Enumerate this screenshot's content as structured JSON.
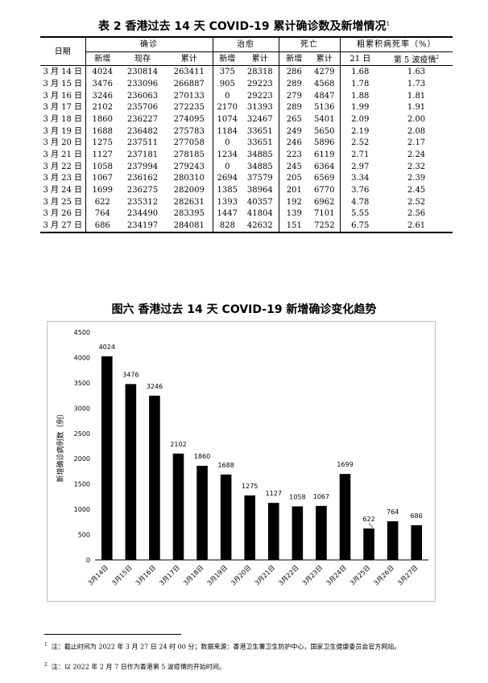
{
  "table": {
    "title": "表 2  香港过去 14 天 COVID-19 累计确诊数及新增情况",
    "title_note": "1",
    "header": {
      "date": "日期",
      "confirmed": "确诊",
      "recovered": "治愈",
      "deaths": "死亡",
      "fatality": "粗累积病死率（%）",
      "new": "新增",
      "current": "现存",
      "cumulative": "累计",
      "day21": "21 日",
      "wave5": "第 5 波疫情",
      "wave5_note": "2"
    },
    "rows": [
      {
        "date": "3 月 14 日",
        "new": "4024",
        "current": "230814",
        "cum": "263411",
        "rec_new": "375",
        "rec_cum": "28318",
        "death_new": "286",
        "death_cum": "4279",
        "cfr21": "1.68",
        "cfr5": "1.63"
      },
      {
        "date": "3 月 15 日",
        "new": "3476",
        "current": "233096",
        "cum": "266887",
        "rec_new": "905",
        "rec_cum": "29223",
        "death_new": "289",
        "death_cum": "4568",
        "cfr21": "1.78",
        "cfr5": "1.73"
      },
      {
        "date": "3 月 16 日",
        "new": "3246",
        "current": "236063",
        "cum": "270133",
        "rec_new": "0",
        "rec_cum": "29223",
        "death_new": "279",
        "death_cum": "4847",
        "cfr21": "1.88",
        "cfr5": "1.81"
      },
      {
        "date": "3 月 17 日",
        "new": "2102",
        "current": "235706",
        "cum": "272235",
        "rec_new": "2170",
        "rec_cum": "31393",
        "death_new": "289",
        "death_cum": "5136",
        "cfr21": "1.99",
        "cfr5": "1.91"
      },
      {
        "date": "3 月 18 日",
        "new": "1860",
        "current": "236227",
        "cum": "274095",
        "rec_new": "1074",
        "rec_cum": "32467",
        "death_new": "265",
        "death_cum": "5401",
        "cfr21": "2.09",
        "cfr5": "2.00"
      },
      {
        "date": "3 月 19 日",
        "new": "1688",
        "current": "236482",
        "cum": "275783",
        "rec_new": "1184",
        "rec_cum": "33651",
        "death_new": "249",
        "death_cum": "5650",
        "cfr21": "2.19",
        "cfr5": "2.08"
      },
      {
        "date": "3 月 20 日",
        "new": "1275",
        "current": "237511",
        "cum": "277058",
        "rec_new": "0",
        "rec_cum": "33651",
        "death_new": "246",
        "death_cum": "5896",
        "cfr21": "2.52",
        "cfr5": "2.17"
      },
      {
        "date": "3 月 21 日",
        "new": "1127",
        "current": "237181",
        "cum": "278185",
        "rec_new": "1234",
        "rec_cum": "34885",
        "death_new": "223",
        "death_cum": "6119",
        "cfr21": "2.71",
        "cfr5": "2.24"
      },
      {
        "date": "3 月 22 日",
        "new": "1058",
        "current": "237994",
        "cum": "279243",
        "rec_new": "0",
        "rec_cum": "34885",
        "death_new": "245",
        "death_cum": "6364",
        "cfr21": "2.97",
        "cfr5": "2.32"
      },
      {
        "date": "3 月 23 日",
        "new": "1067",
        "current": "236162",
        "cum": "280310",
        "rec_new": "2694",
        "rec_cum": "37579",
        "death_new": "205",
        "death_cum": "6569",
        "cfr21": "3.34",
        "cfr5": "2.39"
      },
      {
        "date": "3 月 24 日",
        "new": "1699",
        "current": "236275",
        "cum": "282009",
        "rec_new": "1385",
        "rec_cum": "38964",
        "death_new": "201",
        "death_cum": "6770",
        "cfr21": "3.76",
        "cfr5": "2.45"
      },
      {
        "date": "3 月 25 日",
        "new": "622",
        "current": "235312",
        "cum": "282631",
        "rec_new": "1393",
        "rec_cum": "40357",
        "death_new": "192",
        "death_cum": "6962",
        "cfr21": "4.78",
        "cfr5": "2.52"
      },
      {
        "date": "3 月 26 日",
        "new": "764",
        "current": "234490",
        "cum": "283395",
        "rec_new": "1447",
        "rec_cum": "41804",
        "death_new": "139",
        "death_cum": "7101",
        "cfr21": "5.55",
        "cfr5": "2.56"
      },
      {
        "date": "3 月 27 日",
        "new": "686",
        "current": "234197",
        "cum": "284081",
        "rec_new": "828",
        "rec_cum": "42632",
        "death_new": "151",
        "death_cum": "7252",
        "cfr21": "6.75",
        "cfr5": "2.61"
      }
    ]
  },
  "chart_data": {
    "type": "bar",
    "title": "图六  香港过去 14 天 COVID-19 新增确诊变化趋势",
    "ylabel": "新增确诊病例数（例）",
    "xlabel": "",
    "categories": [
      "3月14日",
      "3月15日",
      "3月16日",
      "3月17日",
      "3月18日",
      "3月19日",
      "3月20日",
      "3月21日",
      "3月22日",
      "3月23日",
      "3月24日",
      "3月25日",
      "3月26日",
      "3月27日"
    ],
    "values": [
      4024,
      3476,
      3246,
      2102,
      1860,
      1688,
      1275,
      1127,
      1058,
      1067,
      1699,
      622,
      764,
      686
    ],
    "ylim": [
      0,
      4500
    ],
    "yticks": [
      0,
      500,
      1000,
      1500,
      2000,
      2500,
      3000,
      3500,
      4000,
      4500
    ],
    "grid": false,
    "bar_color": "#000000",
    "data_labels": true
  },
  "footnotes": [
    {
      "mark": "1",
      "text": "注：截止时间为 2022 年 3 月 27 日 24 时 00 分；数据来源：香港卫生署卫生防护中心，国家卫生健康委员会官方网站。"
    },
    {
      "mark": "2",
      "text": "注：以 2022 年 2 月 7 日作为香港第 5 波疫情的开始时间。"
    }
  ]
}
